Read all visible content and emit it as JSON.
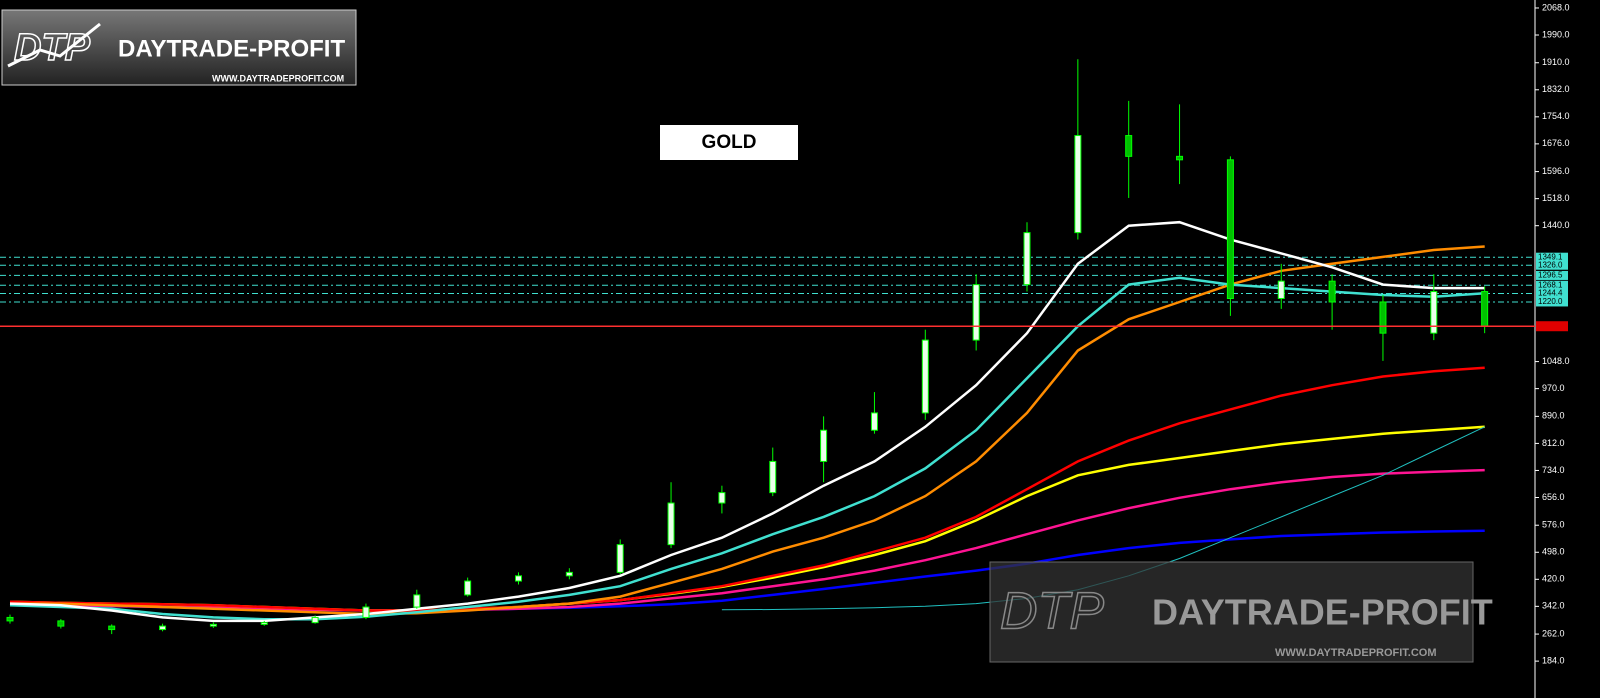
{
  "chart_data": {
    "type": "candlestick",
    "title": "GOLD",
    "logo": {
      "mark": "DTP",
      "name": "DAYTRADE-PROFIT",
      "url": "WWW.DAYTRADEPROFIT.COM"
    },
    "ylim": [
      118,
      2091
    ],
    "yticks": [
      {
        "value": 2068,
        "label": "2068.0"
      },
      {
        "value": 1990,
        "label": "1990.0"
      },
      {
        "value": 1910,
        "label": "1910.0"
      },
      {
        "value": 1832,
        "label": "1832.0"
      },
      {
        "value": 1754,
        "label": "1754.0"
      },
      {
        "value": 1676,
        "label": "1676.0"
      },
      {
        "value": 1596,
        "label": "1596.0"
      },
      {
        "value": 1518,
        "label": "1518.0"
      },
      {
        "value": 1440,
        "label": "1440.0"
      },
      {
        "value": 1048,
        "label": "1048.0"
      },
      {
        "value": 970,
        "label": "970.0"
      },
      {
        "value": 890,
        "label": "890.0"
      },
      {
        "value": 812,
        "label": "812.0"
      },
      {
        "value": 734,
        "label": "734.0"
      },
      {
        "value": 656,
        "label": "656.0"
      },
      {
        "value": 576,
        "label": "576.0"
      },
      {
        "value": 498,
        "label": "498.0"
      },
      {
        "value": 420,
        "label": "420.0"
      },
      {
        "value": 342,
        "label": "342.0"
      },
      {
        "value": 262,
        "label": "262.0"
      },
      {
        "value": 184,
        "label": "184.0"
      }
    ],
    "levels": [
      1349.1,
      {
        "value": 1326,
        "label": "1326.0"
      },
      1296.5,
      1268.1,
      1244.4,
      {
        "value": 1220,
        "label": "1220.0"
      }
    ],
    "current": 1150,
    "open": [
      310,
      300,
      285,
      275,
      285,
      290,
      295,
      310,
      340,
      375,
      415,
      430,
      440,
      520,
      640,
      670,
      760,
      850,
      900,
      1110,
      1270,
      1420,
      1700,
      1640,
      1630,
      1230,
      1280,
      1220,
      1130,
      1250
    ],
    "high": [
      318,
      305,
      290,
      292,
      296,
      300,
      316,
      350,
      390,
      425,
      440,
      452,
      535,
      700,
      690,
      800,
      890,
      960,
      1140,
      1300,
      1450,
      1920,
      1800,
      1790,
      1640,
      1330,
      1300,
      1240,
      1300,
      1265
    ],
    "low": [
      292,
      278,
      262,
      270,
      280,
      286,
      292,
      305,
      335,
      370,
      405,
      420,
      435,
      510,
      610,
      660,
      700,
      840,
      880,
      1080,
      1250,
      1400,
      1520,
      1560,
      1180,
      1200,
      1140,
      1050,
      1110,
      1130
    ],
    "close": [
      300,
      285,
      275,
      285,
      290,
      295,
      310,
      340,
      375,
      415,
      430,
      440,
      520,
      640,
      670,
      760,
      850,
      900,
      1110,
      1270,
      1420,
      1700,
      1640,
      1630,
      1230,
      1280,
      1220,
      1130,
      1250,
      1150
    ],
    "series": [
      {
        "color": "#0000ff",
        "values": [
          345,
          345,
          343,
          340,
          338,
          335,
          332,
          330,
          330,
          332,
          335,
          338,
          342,
          348,
          358,
          375,
          392,
          410,
          428,
          445,
          465,
          490,
          510,
          525,
          535,
          545,
          550,
          555,
          558,
          560
        ]
      },
      {
        "color": "#ff1493",
        "values": [
          345,
          345,
          343,
          340,
          338,
          335,
          332,
          330,
          330,
          332,
          335,
          340,
          350,
          365,
          380,
          400,
          420,
          445,
          475,
          510,
          550,
          590,
          625,
          655,
          680,
          700,
          715,
          725,
          730,
          735
        ]
      },
      {
        "color": "#ffff00",
        "values": [
          355,
          352,
          350,
          348,
          345,
          340,
          335,
          330,
          330,
          335,
          340,
          350,
          360,
          378,
          398,
          425,
          455,
          490,
          530,
          590,
          660,
          720,
          750,
          770,
          790,
          810,
          825,
          840,
          850,
          860
        ]
      },
      {
        "color": "#ff0000",
        "values": [
          355,
          352,
          350,
          348,
          345,
          340,
          335,
          330,
          330,
          335,
          340,
          350,
          360,
          380,
          400,
          430,
          460,
          500,
          540,
          600,
          680,
          760,
          820,
          870,
          910,
          950,
          980,
          1005,
          1020,
          1030
        ]
      },
      {
        "color": "#ff8c00",
        "values": [
          350,
          350,
          345,
          340,
          335,
          330,
          325,
          320,
          322,
          330,
          340,
          350,
          370,
          410,
          450,
          500,
          540,
          590,
          660,
          760,
          900,
          1080,
          1170,
          1220,
          1270,
          1310,
          1330,
          1350,
          1370,
          1380
        ]
      },
      {
        "color": "#40e0d0",
        "values": [
          345,
          340,
          335,
          320,
          310,
          305,
          305,
          312,
          325,
          340,
          355,
          375,
          400,
          450,
          495,
          550,
          600,
          660,
          740,
          850,
          1000,
          1150,
          1270,
          1290,
          1270,
          1260,
          1250,
          1240,
          1235,
          1245
        ]
      },
      {
        "color": "#ffffff",
        "values": [
          350,
          345,
          330,
          310,
          300,
          300,
          310,
          320,
          335,
          350,
          370,
          395,
          430,
          490,
          540,
          610,
          690,
          760,
          860,
          980,
          1130,
          1330,
          1440,
          1450,
          1400,
          1360,
          1320,
          1270,
          1260,
          1260
        ]
      },
      {
        "color": "#20c0c0",
        "values": [
          null,
          null,
          null,
          null,
          null,
          null,
          null,
          null,
          null,
          null,
          null,
          null,
          null,
          null,
          332,
          333,
          335,
          338,
          342,
          350,
          365,
          390,
          430,
          480,
          540,
          600,
          660,
          720,
          790,
          860
        ]
      }
    ]
  }
}
